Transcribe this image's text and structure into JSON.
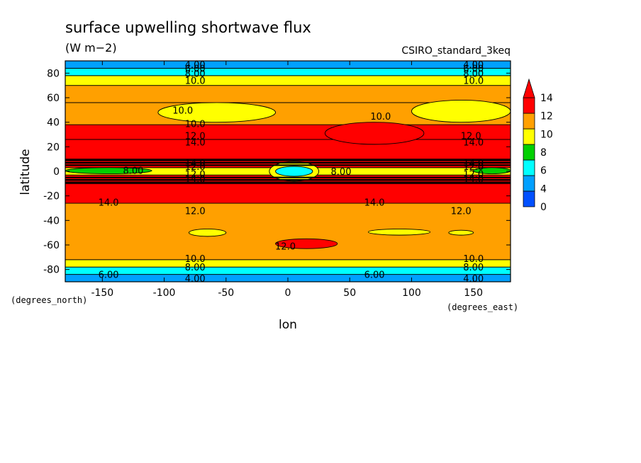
{
  "chart_data": {
    "type": "heatmap",
    "title": "surface upwelling shortwave flux",
    "units": "(W m−2)",
    "model": "CSIRO_standard_3keq",
    "xlabel": "lon",
    "ylabel": "latitude",
    "x_unit_label": "(degrees_east)",
    "y_unit_label": "(degrees_north)",
    "xlim": [
      -180,
      180
    ],
    "ylim": [
      -90,
      90
    ],
    "x_ticks": [
      -150,
      -100,
      -50,
      0,
      50,
      100,
      150
    ],
    "y_ticks": [
      -80,
      -60,
      -40,
      -20,
      0,
      20,
      40,
      60,
      80
    ],
    "colorbar": {
      "levels": [
        0,
        2,
        4,
        6,
        8,
        10,
        12,
        14
      ],
      "tick_labels": [
        "0",
        "4",
        "6",
        "8",
        "10",
        "12",
        "14"
      ],
      "colors": [
        "#0050ff",
        "#00a0ff",
        "#00ffff",
        "#00d000",
        "#ffff00",
        "#ffa000",
        "#ff0000"
      ]
    },
    "zonal_bands": [
      {
        "lat": [
          -90,
          -84
        ],
        "value": 3
      },
      {
        "lat": [
          -84,
          -78
        ],
        "value": 5
      },
      {
        "lat": [
          -78,
          -72
        ],
        "value": 9
      },
      {
        "lat": [
          -72,
          -26
        ],
        "value": 11
      },
      {
        "lat": [
          -26,
          -10
        ],
        "value": 14.5
      },
      {
        "lat": [
          -10,
          -3
        ],
        "value": 13
      },
      {
        "lat": [
          -3,
          3
        ],
        "value": 8
      },
      {
        "lat": [
          3,
          10
        ],
        "value": 13
      },
      {
        "lat": [
          10,
          26
        ],
        "value": 14.5
      },
      {
        "lat": [
          26,
          38
        ],
        "value": 12.5
      },
      {
        "lat": [
          38,
          56
        ],
        "value": 11
      },
      {
        "lat": [
          56,
          70
        ],
        "value": 11
      },
      {
        "lat": [
          70,
          78
        ],
        "value": 9
      },
      {
        "lat": [
          78,
          84
        ],
        "value": 5
      },
      {
        "lat": [
          84,
          90
        ],
        "value": 3
      }
    ],
    "regions": [
      {
        "lon": [
          -180,
          -180
        ],
        "lat": [
          0,
          0
        ],
        "value": 0
      }
    ],
    "contour_labels": [
      {
        "text": "4.00",
        "lon": -75,
        "lat": 87
      },
      {
        "text": "6.00",
        "lon": -75,
        "lat": 84
      },
      {
        "text": "8.00",
        "lon": -75,
        "lat": 80
      },
      {
        "text": "10.0",
        "lon": -75,
        "lat": 74
      },
      {
        "text": "4.00",
        "lon": 150,
        "lat": 87
      },
      {
        "text": "6.00",
        "lon": 150,
        "lat": 84
      },
      {
        "text": "8.00",
        "lon": 150,
        "lat": 80
      },
      {
        "text": "10.0",
        "lon": 150,
        "lat": 74
      },
      {
        "text": "10.0",
        "lon": -85,
        "lat": 50
      },
      {
        "text": "10.0",
        "lon": 75,
        "lat": 45
      },
      {
        "text": "10.0",
        "lon": -75,
        "lat": 39
      },
      {
        "text": "12.0",
        "lon": -75,
        "lat": 29
      },
      {
        "text": "14.0",
        "lon": -75,
        "lat": 24
      },
      {
        "text": "12.0",
        "lon": 148,
        "lat": 29
      },
      {
        "text": "14.0",
        "lon": 150,
        "lat": 24
      },
      {
        "text": "14.0",
        "lon": -75,
        "lat": 7
      },
      {
        "text": "12.0",
        "lon": -75,
        "lat": 4
      },
      {
        "text": "8.00",
        "lon": -125,
        "lat": 1
      },
      {
        "text": "12.0",
        "lon": -75,
        "lat": -2
      },
      {
        "text": "14.0",
        "lon": -75,
        "lat": -6
      },
      {
        "text": "14.0",
        "lon": 150,
        "lat": 7
      },
      {
        "text": "12.0",
        "lon": 150,
        "lat": 4
      },
      {
        "text": "12.0",
        "lon": 150,
        "lat": -2
      },
      {
        "text": "14.0",
        "lon": 150,
        "lat": -6
      },
      {
        "text": "8.00",
        "lon": 43,
        "lat": 0
      },
      {
        "text": "14.0",
        "lon": -145,
        "lat": -25
      },
      {
        "text": "14.0",
        "lon": 70,
        "lat": -25
      },
      {
        "text": "12.0",
        "lon": -75,
        "lat": -32
      },
      {
        "text": "12.0",
        "lon": 140,
        "lat": -32
      },
      {
        "text": "12.0",
        "lon": -2,
        "lat": -61
      },
      {
        "text": "10.0",
        "lon": -75,
        "lat": -71
      },
      {
        "text": "8.00",
        "lon": -75,
        "lat": -78
      },
      {
        "text": "4.00",
        "lon": -75,
        "lat": -87
      },
      {
        "text": "6.00",
        "lon": -145,
        "lat": -84
      },
      {
        "text": "6.00",
        "lon": 70,
        "lat": -84
      },
      {
        "text": "10.0",
        "lon": 150,
        "lat": -71
      },
      {
        "text": "8.00",
        "lon": 150,
        "lat": -78
      },
      {
        "text": "4.00",
        "lon": 150,
        "lat": -87
      }
    ]
  }
}
